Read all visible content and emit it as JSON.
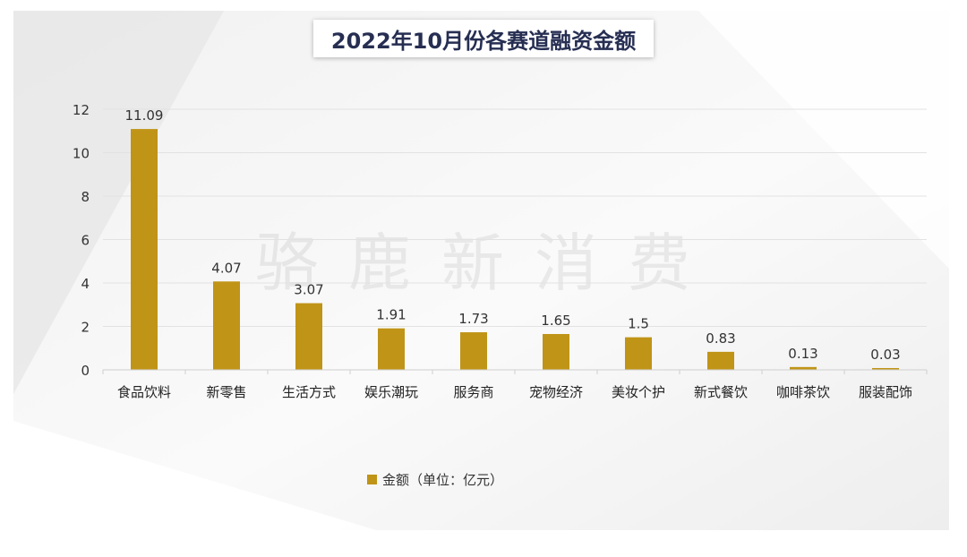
{
  "chart_data": {
    "type": "bar",
    "title": "2022年10月份各赛道融资金额",
    "categories": [
      "食品饮料",
      "新零售",
      "生活方式",
      "娱乐潮玩",
      "服务商",
      "宠物经济",
      "美妆个护",
      "新式餐饮",
      "咖啡茶饮",
      "服装配饰"
    ],
    "series": [
      {
        "name": "金额（单位：亿元）",
        "values": [
          11.09,
          4.07,
          3.07,
          1.91,
          1.73,
          1.65,
          1.5,
          0.83,
          0.13,
          0.03
        ]
      }
    ],
    "value_labels": [
      "11.09",
      "4.07",
      "3.07",
      "1.91",
      "1.73",
      "1.65",
      "1.5",
      "0.83",
      "0.13",
      "0.03"
    ],
    "ylim": [
      0,
      12
    ],
    "yticks": [
      0,
      2,
      4,
      6,
      8,
      10,
      12
    ],
    "grid": true,
    "legend_position": "bottom",
    "bar_color": "#c09417"
  },
  "watermark": "骆鹿新消费"
}
